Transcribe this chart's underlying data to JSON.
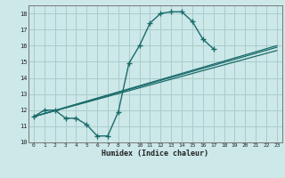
{
  "xlabel": "Humidex (Indice chaleur)",
  "xlim": [
    -0.5,
    23.5
  ],
  "ylim": [
    10,
    18.5
  ],
  "xticks": [
    0,
    1,
    2,
    3,
    4,
    5,
    6,
    7,
    8,
    9,
    10,
    11,
    12,
    13,
    14,
    15,
    16,
    17,
    18,
    19,
    20,
    21,
    22,
    23
  ],
  "yticks": [
    10,
    11,
    12,
    13,
    14,
    15,
    16,
    17,
    18
  ],
  "background_color": "#cce8e8",
  "line_color": "#1a6b6b",
  "grid_color": "#aacccc",
  "main_line": {
    "x": [
      0,
      1,
      2,
      3,
      4,
      5,
      6,
      7,
      8,
      9,
      10,
      11,
      12,
      13,
      14,
      15,
      16,
      17
    ],
    "y": [
      11.6,
      12.0,
      12.0,
      11.5,
      11.5,
      11.1,
      10.4,
      10.4,
      11.9,
      14.9,
      16.0,
      17.4,
      18.0,
      18.1,
      18.1,
      17.5,
      16.4,
      15.8
    ]
  },
  "straight_lines": [
    {
      "x": [
        0,
        23
      ],
      "y": [
        11.6,
        15.9
      ]
    },
    {
      "x": [
        0,
        23
      ],
      "y": [
        11.6,
        16.0
      ]
    },
    {
      "x": [
        0,
        23
      ],
      "y": [
        11.6,
        15.7
      ]
    }
  ]
}
